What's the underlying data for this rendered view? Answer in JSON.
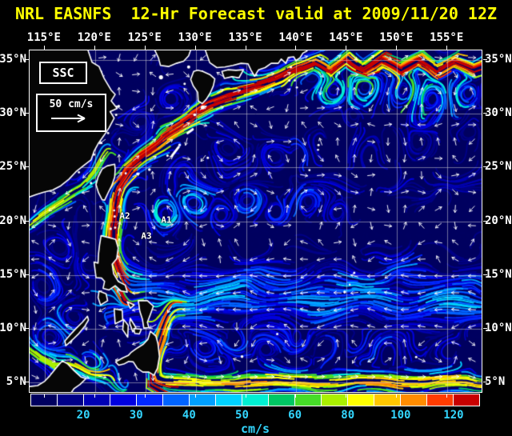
{
  "title": "NRL EASNFS  12-Hr Forecast valid at 2009/11/20 12Z",
  "colors": {
    "background": "#000000",
    "title_text": "#ffff00",
    "axis_text": "#ffffff",
    "colorbar_text": "#33d6ff",
    "land_outline": "#ffffff",
    "grid_line": "#c8c8c8",
    "ocean_background": "#000060"
  },
  "map": {
    "variable_label": "SSC",
    "scale_label": "50 cm/s",
    "lon_ticks": [
      "115°E",
      "120°E",
      "125°E",
      "130°E",
      "135°E",
      "140°E",
      "145°E",
      "150°E",
      "155°E"
    ],
    "lat_ticks": [
      "35°N",
      "30°N",
      "25°N",
      "20°N",
      "15°N",
      "10°N",
      "5°N"
    ],
    "annotations": [
      {
        "label": "A1"
      },
      {
        "label": "A2"
      },
      {
        "label": "A3"
      }
    ]
  },
  "colorbar": {
    "unit": "cm/s",
    "tick_labels": [
      "20",
      "30",
      "40",
      "50",
      "60",
      "80",
      "100",
      "120"
    ],
    "colors": [
      "#000060",
      "#000088",
      "#0000b4",
      "#0000e0",
      "#0028ff",
      "#0064ff",
      "#00a0ff",
      "#00d2ff",
      "#00f0d2",
      "#00c864",
      "#46dc28",
      "#aaf000",
      "#ffff00",
      "#ffc800",
      "#ff8c00",
      "#ff3c00",
      "#c80000"
    ]
  },
  "chart_data": {
    "type": "heatmap",
    "title": "NRL EASNFS 12-Hr Forecast valid at 2009/11/20 12Z",
    "variable": "SSC (sea surface currents: speed shading with direction vectors)",
    "units": "cm/s",
    "x_tick_labels_deg_east": [
      115,
      120,
      125,
      130,
      135,
      140,
      145,
      150,
      155
    ],
    "y_tick_labels_deg_north": [
      35,
      30,
      25,
      20,
      15,
      10,
      5
    ],
    "color_scale_ticks_cm_per_s": [
      20,
      30,
      40,
      50,
      60,
      80,
      100,
      120
    ],
    "reference_vector_cm_per_s": 50,
    "station_labels": [
      "A1",
      "A2",
      "A3"
    ],
    "legend_position": "bottom"
  }
}
